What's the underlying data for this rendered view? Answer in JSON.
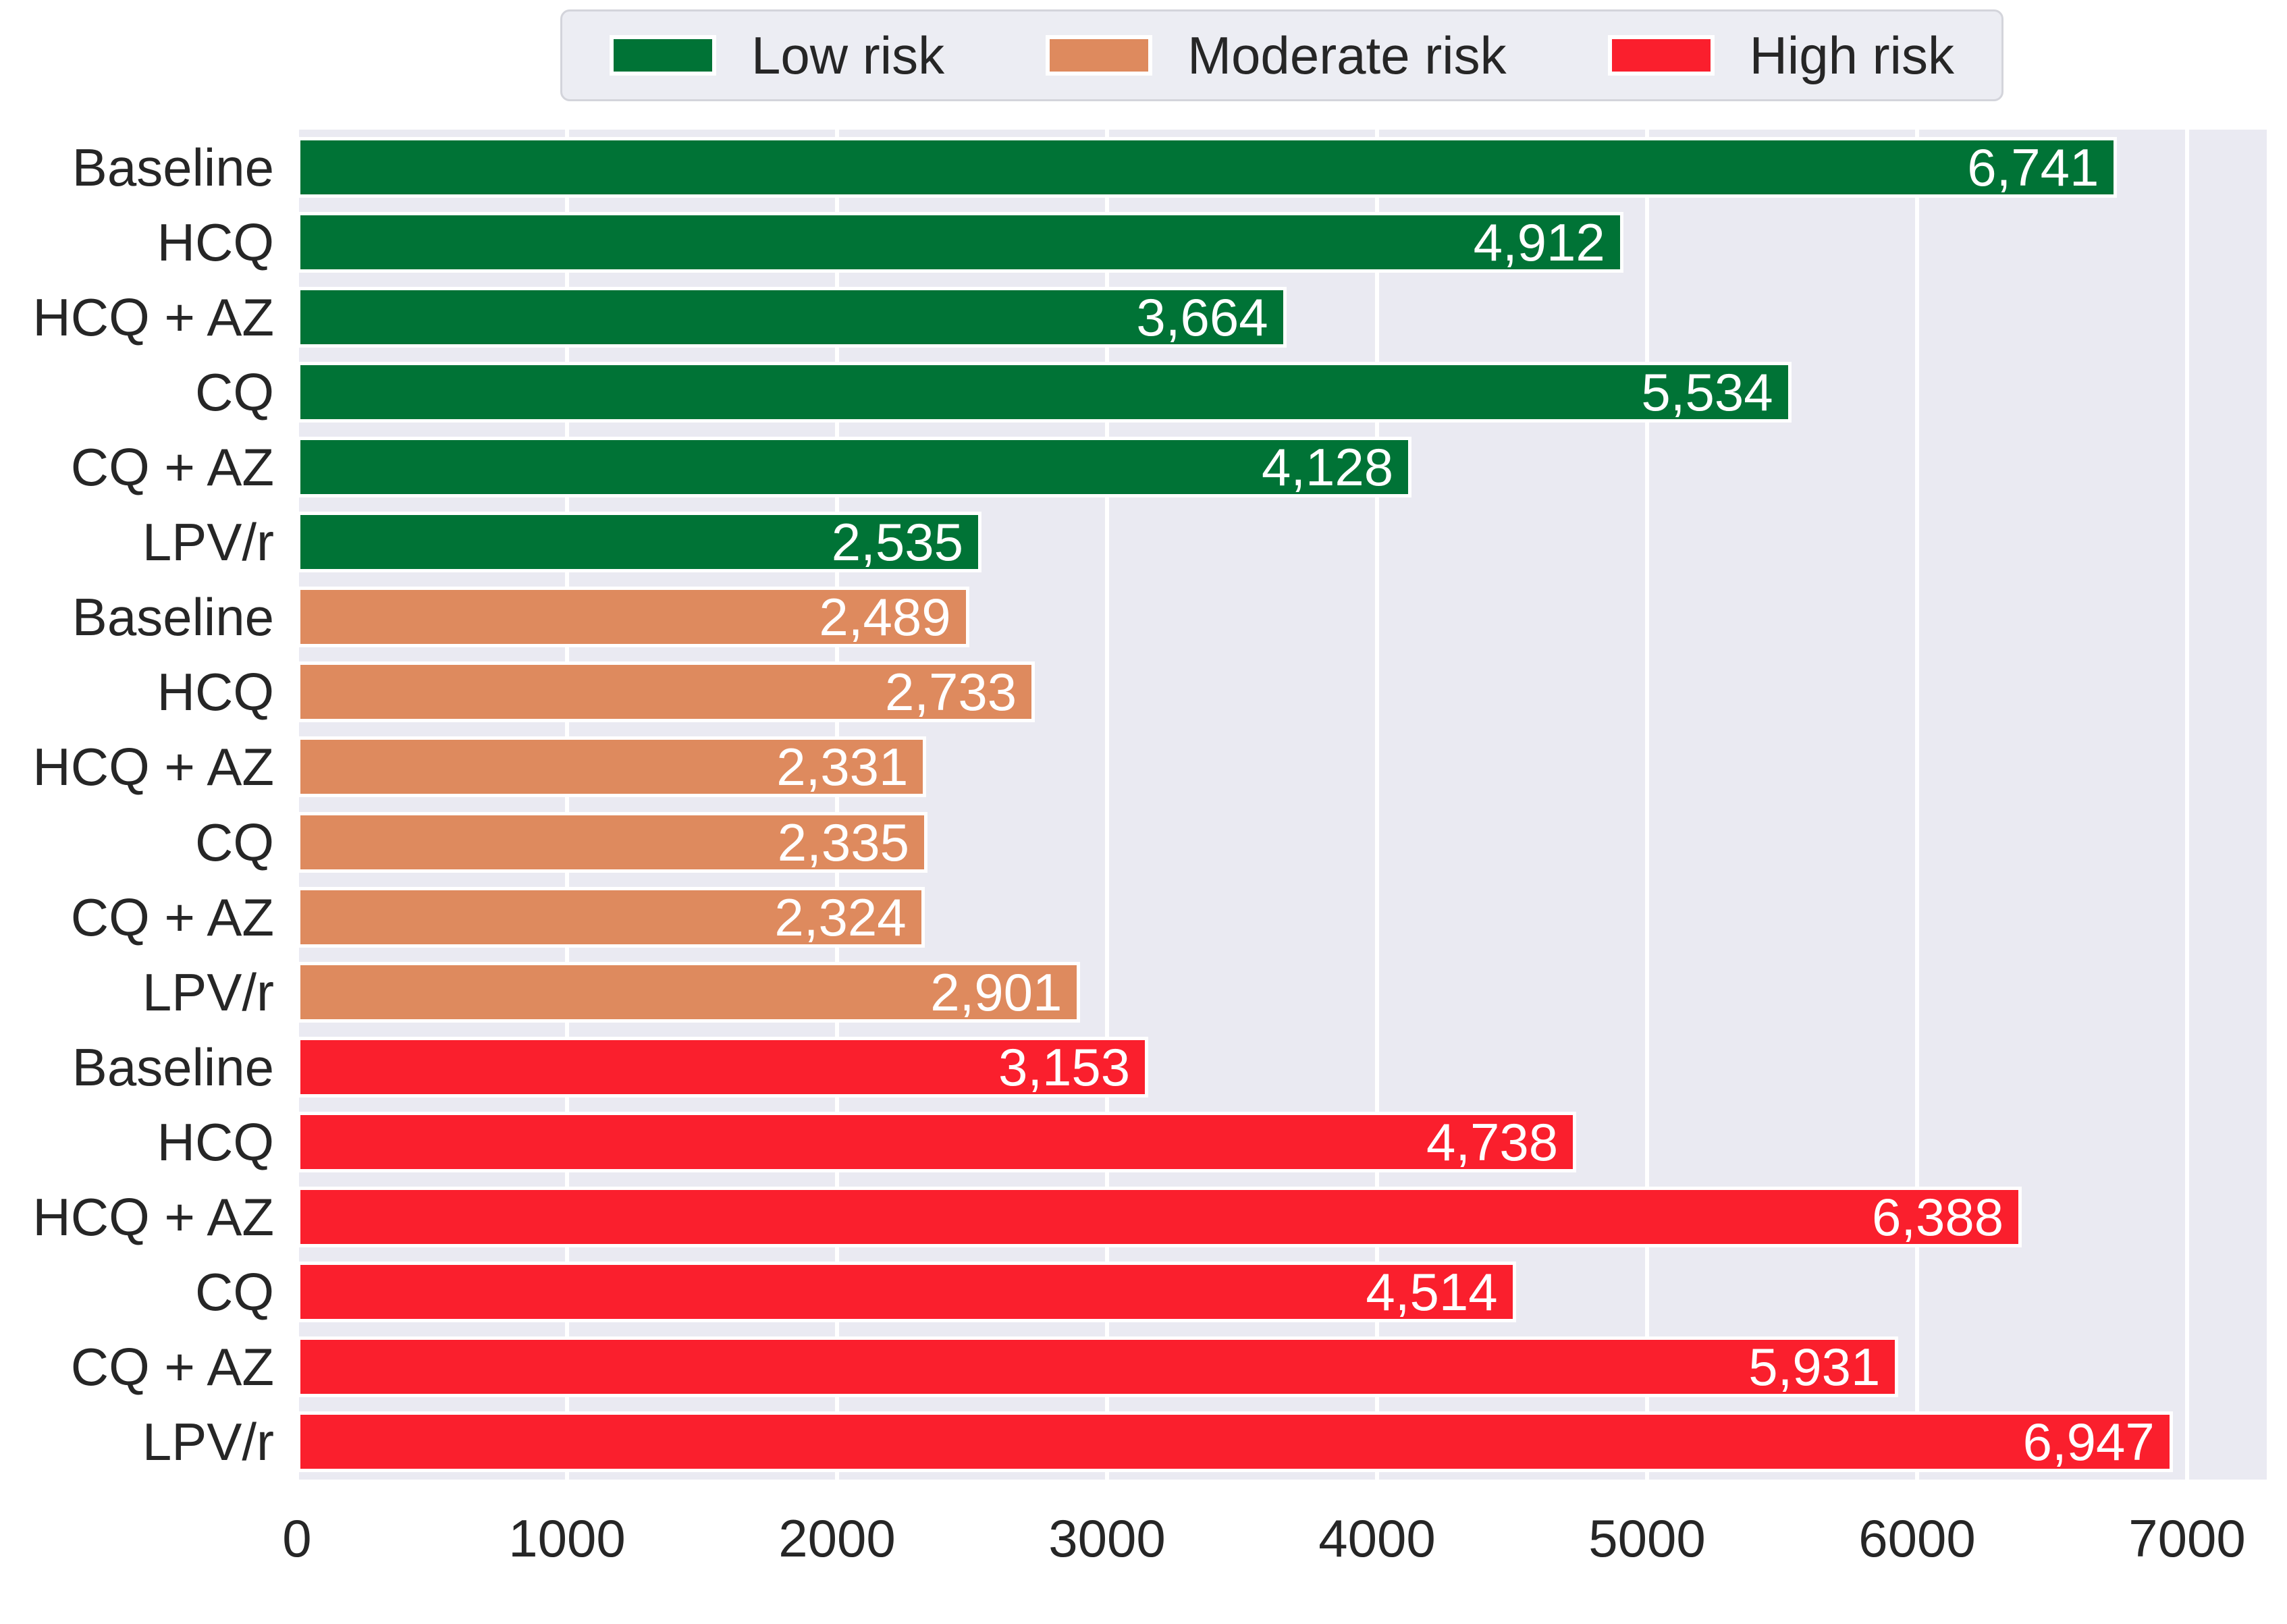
{
  "chart_data": {
    "type": "bar",
    "orientation": "horizontal",
    "title": "",
    "xlabel": "",
    "ylabel": "",
    "categories": [
      "Baseline",
      "HCQ",
      "HCQ + AZ",
      "CQ",
      "CQ + AZ",
      "LPV/r"
    ],
    "series": [
      {
        "name": "Low risk",
        "color": "#007336",
        "values": [
          6741,
          4912,
          3664,
          5534,
          4128,
          2535
        ]
      },
      {
        "name": "Moderate risk",
        "color": "#de8a5e",
        "values": [
          2489,
          2733,
          2331,
          2335,
          2324,
          2901
        ]
      },
      {
        "name": "High risk",
        "color": "#fa1f2d",
        "values": [
          3153,
          4738,
          6388,
          4514,
          5931,
          6947
        ]
      }
    ],
    "x_ticks": [
      0,
      1000,
      2000,
      3000,
      4000,
      5000,
      6000,
      7000
    ],
    "xlim": [
      0,
      7295
    ],
    "grid": "vertical-white-gridlines",
    "legend_position": "top-center",
    "plot_background": "#eaeaf2",
    "value_label_color": "#ffffff",
    "value_label_format": "thousands-comma",
    "tick_label_color": "#262626"
  }
}
